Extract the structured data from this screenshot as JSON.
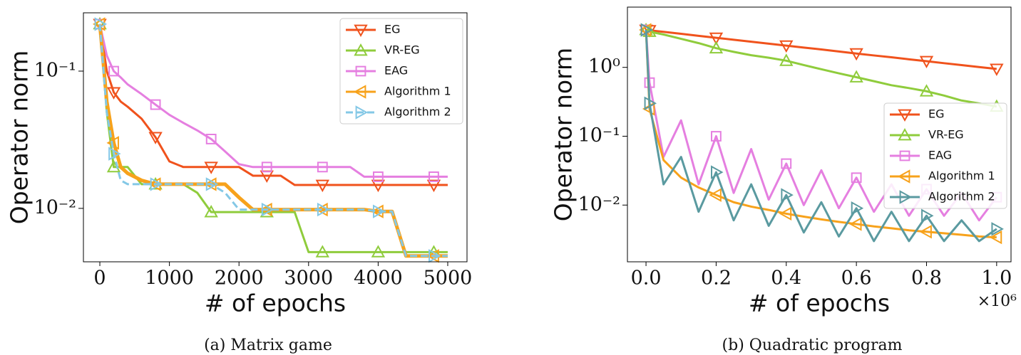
{
  "chart_data": [
    {
      "type": "line",
      "caption": "(a) Matrix game",
      "xlabel": "# of epochs",
      "ylabel": "Operator norm",
      "ylog": true,
      "legend": "upper right",
      "xlim": [
        -236,
        5277
      ],
      "ylim": [
        0.00408,
        0.266
      ],
      "xticks": [
        0,
        1000,
        2000,
        3000,
        4000,
        5000
      ],
      "yticks": [
        {
          "value": 0.1,
          "label": "10⁻¹"
        },
        {
          "value": 0.01,
          "label": "10⁻²"
        }
      ],
      "x": [
        0,
        100,
        200,
        300,
        400,
        600,
        800,
        1000,
        1200,
        1400,
        1600,
        1800,
        2000,
        2200,
        2400,
        2600,
        2800,
        3000,
        3200,
        3400,
        3600,
        3800,
        4000,
        4200,
        4400,
        4600,
        4800,
        5000
      ],
      "series": [
        {
          "name": "EG",
          "color": "#f0521c",
          "marker": "v",
          "linestyle": "solid",
          "values": [
            0.22,
            0.1,
            0.07,
            0.06,
            0.055,
            0.045,
            0.033,
            0.022,
            0.02,
            0.02,
            0.02,
            0.02,
            0.02,
            0.0173,
            0.0173,
            0.0173,
            0.0148,
            0.0148,
            0.0148,
            0.0148,
            0.0148,
            0.0148,
            0.0148,
            0.0148,
            0.0148,
            0.0148,
            0.0148,
            0.0148
          ]
        },
        {
          "name": "VR-EG",
          "color": "#8fcc3c",
          "marker": "^",
          "linestyle": "solid",
          "values": [
            0.22,
            0.05,
            0.02,
            0.02,
            0.02,
            0.015,
            0.015,
            0.015,
            0.015,
            0.013,
            0.0094,
            0.0094,
            0.0094,
            0.0094,
            0.0094,
            0.0094,
            0.0094,
            0.0048,
            0.0048,
            0.0048,
            0.0048,
            0.0048,
            0.0048,
            0.0048,
            0.0048,
            0.0048,
            0.0048,
            0.0048
          ]
        },
        {
          "name": "EAG",
          "color": "#e57fe0",
          "marker": "s",
          "linestyle": "solid",
          "values": [
            0.22,
            0.13,
            0.1,
            0.09,
            0.08,
            0.068,
            0.057,
            0.048,
            0.042,
            0.037,
            0.032,
            0.026,
            0.021,
            0.02,
            0.02,
            0.02,
            0.02,
            0.02,
            0.02,
            0.02,
            0.02,
            0.017,
            0.017,
            0.017,
            0.017,
            0.017,
            0.017,
            0.017
          ]
        },
        {
          "name": "Algorithm 1",
          "color": "#f7a21b",
          "marker": "<",
          "linestyle": "solid",
          "values": [
            0.22,
            0.06,
            0.03,
            0.02,
            0.018,
            0.016,
            0.015,
            0.015,
            0.015,
            0.015,
            0.015,
            0.015,
            0.012,
            0.0098,
            0.0098,
            0.0098,
            0.0098,
            0.0098,
            0.0098,
            0.0098,
            0.0098,
            0.0098,
            0.0095,
            0.0095,
            0.0045,
            0.0045,
            0.0045,
            0.0045
          ]
        },
        {
          "name": "Algorithm 2",
          "color": "#84c8e6",
          "marker": ">",
          "linestyle": "dashed",
          "values": [
            0.22,
            0.05,
            0.025,
            0.016,
            0.015,
            0.015,
            0.015,
            0.015,
            0.015,
            0.015,
            0.015,
            0.013,
            0.0098,
            0.0098,
            0.0098,
            0.0098,
            0.0098,
            0.0098,
            0.0098,
            0.0098,
            0.0098,
            0.0098,
            0.0095,
            0.0095,
            0.0045,
            0.0045,
            0.0045,
            0.0045
          ]
        }
      ]
    },
    {
      "type": "line",
      "caption": "(b) Quadratic program",
      "xlabel": "# of epochs",
      "ylabel": "Operator norm",
      "x_multiplier": "×10⁶",
      "ylog": true,
      "legend": "center right",
      "xlim": [
        -0.053,
        1.041
      ],
      "ylim": [
        0.0015,
        7.5
      ],
      "xticks": [
        {
          "value": 0,
          "label": "0.0"
        },
        {
          "value": 0.2,
          "label": "0.2"
        },
        {
          "value": 0.4,
          "label": "0.4"
        },
        {
          "value": 0.6,
          "label": "0.6"
        },
        {
          "value": 0.8,
          "label": "0.8"
        },
        {
          "value": 1,
          "label": "1.0"
        }
      ],
      "yticks": [
        {
          "value": 1,
          "label": "10⁰"
        },
        {
          "value": 0.1,
          "label": "10⁻¹"
        },
        {
          "value": 0.01,
          "label": "10⁻²"
        }
      ],
      "x": [
        0,
        0.01,
        0.05,
        0.1,
        0.15,
        0.2,
        0.25,
        0.3,
        0.35,
        0.4,
        0.45,
        0.5,
        0.55,
        0.6,
        0.65,
        0.7,
        0.75,
        0.8,
        0.85,
        0.9,
        0.95,
        1.0
      ],
      "series": [
        {
          "name": "EG",
          "color": "#f0521c",
          "marker": "v",
          "linestyle": "solid",
          "values": [
            3.5,
            3.45,
            3.28,
            3.07,
            2.87,
            2.69,
            2.52,
            2.36,
            2.21,
            2.07,
            1.94,
            1.82,
            1.7,
            1.59,
            1.49,
            1.4,
            1.31,
            1.23,
            1.15,
            1.08,
            1.01,
            0.95
          ]
        },
        {
          "name": "VR-EG",
          "color": "#8fcc3c",
          "marker": "^",
          "linestyle": "solid",
          "values": [
            3.5,
            3.3,
            3.0,
            2.6,
            2.25,
            1.9,
            1.68,
            1.5,
            1.38,
            1.25,
            1.08,
            0.94,
            0.82,
            0.72,
            0.63,
            0.55,
            0.5,
            0.45,
            0.39,
            0.33,
            0.3,
            0.27
          ]
        },
        {
          "name": "EAG",
          "color": "#e57fe0",
          "marker": "s",
          "linestyle": "solid",
          "values": [
            3.5,
            0.6,
            0.05,
            0.17,
            0.02,
            0.1,
            0.015,
            0.065,
            0.012,
            0.04,
            0.01,
            0.032,
            0.009,
            0.025,
            0.008,
            0.02,
            0.007,
            0.017,
            0.007,
            0.015,
            0.006,
            0.013
          ]
        },
        {
          "name": "Algorithm 1",
          "color": "#f7a21b",
          "marker": "<",
          "linestyle": "solid",
          "values": [
            3.5,
            0.25,
            0.045,
            0.025,
            0.018,
            0.014,
            0.011,
            0.0095,
            0.0085,
            0.0075,
            0.0068,
            0.0062,
            0.0057,
            0.0053,
            0.0049,
            0.0046,
            0.0043,
            0.0041,
            0.0039,
            0.0037,
            0.0035,
            0.0034
          ]
        },
        {
          "name": "Algorithm 2",
          "color": "#5a9aa0",
          "marker": ">",
          "linestyle": "solid",
          "values": [
            3.5,
            0.3,
            0.02,
            0.05,
            0.008,
            0.03,
            0.006,
            0.02,
            0.005,
            0.014,
            0.004,
            0.011,
            0.0035,
            0.009,
            0.003,
            0.008,
            0.003,
            0.007,
            0.003,
            0.006,
            0.003,
            0.0045
          ]
        }
      ]
    }
  ]
}
